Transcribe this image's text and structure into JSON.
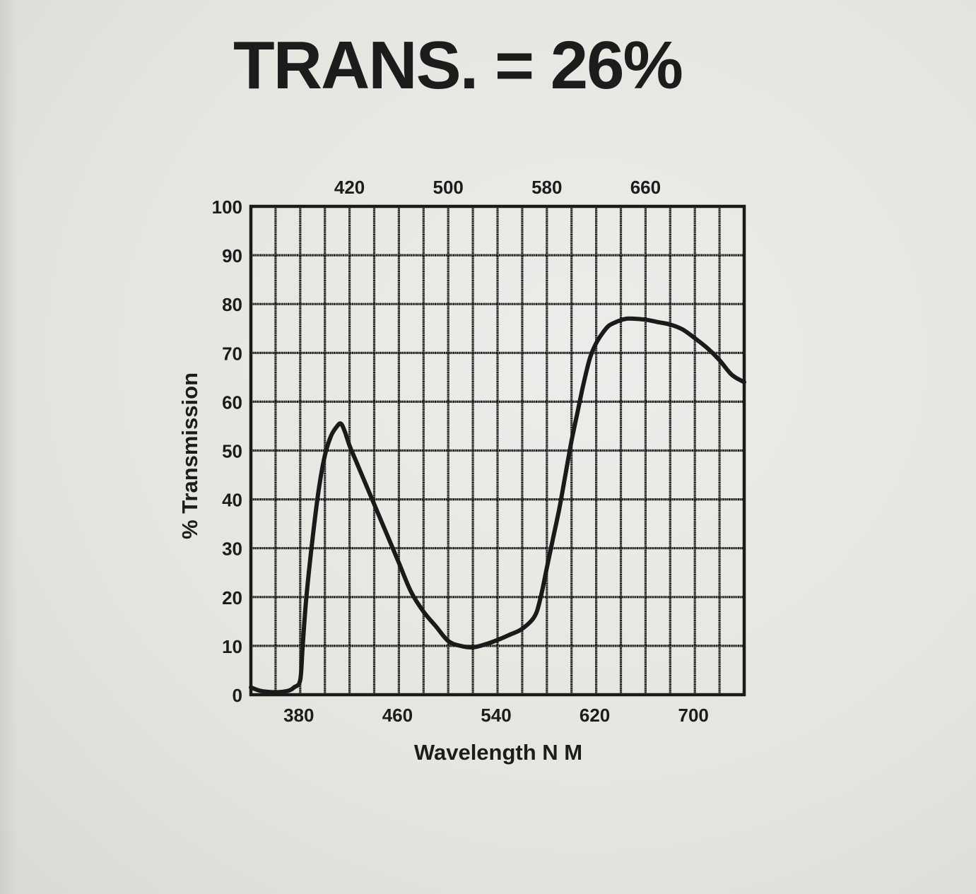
{
  "chart_data": {
    "type": "line",
    "title": "TRANS. = 26%",
    "xlabel": "Wavelength N M",
    "ylabel": "% Transmission",
    "xlim": [
      340,
      740
    ],
    "ylim": [
      0,
      100
    ],
    "x_ticks_bottom": [
      "380",
      "460",
      "540",
      "620",
      "700"
    ],
    "x_ticks_top": [
      "420",
      "500",
      "580",
      "660"
    ],
    "y_ticks": [
      "0",
      "10",
      "20",
      "30",
      "40",
      "50",
      "60",
      "70",
      "80",
      "90",
      "100"
    ],
    "grid": true,
    "colors": {
      "line": "#1a1a1a",
      "grid": "#1a1a1a",
      "background": "#e6e7e2"
    },
    "series": [
      {
        "x": [
          340,
          345,
          350,
          360,
          370,
          375,
          380,
          382,
          385,
          390,
          395,
          400,
          405,
          410,
          413,
          416,
          420,
          425,
          430,
          440,
          450,
          460,
          470,
          480,
          490,
          500,
          510,
          520,
          530,
          540,
          550,
          560,
          570,
          575,
          580,
          585,
          590,
          595,
          600,
          605,
          610,
          615,
          620,
          625,
          630,
          635,
          640,
          645,
          650,
          660,
          670,
          680,
          690,
          700,
          710,
          720,
          730,
          740
        ],
        "y": [
          1.5,
          1.0,
          0.7,
          0.5,
          0.8,
          1.5,
          3.0,
          10,
          20,
          32,
          42,
          49,
          53,
          55,
          55.5,
          54,
          51,
          48,
          45,
          39,
          33,
          27,
          21,
          17,
          14,
          11,
          10,
          9.7,
          10.3,
          11.2,
          12.3,
          13.5,
          16,
          20,
          26,
          32,
          38,
          45,
          52,
          58,
          64,
          69,
          72,
          74,
          75.5,
          76.2,
          76.7,
          77,
          77,
          76.8,
          76.3,
          75.8,
          74.8,
          73,
          71,
          68.5,
          65.5,
          64
        ]
      }
    ]
  }
}
